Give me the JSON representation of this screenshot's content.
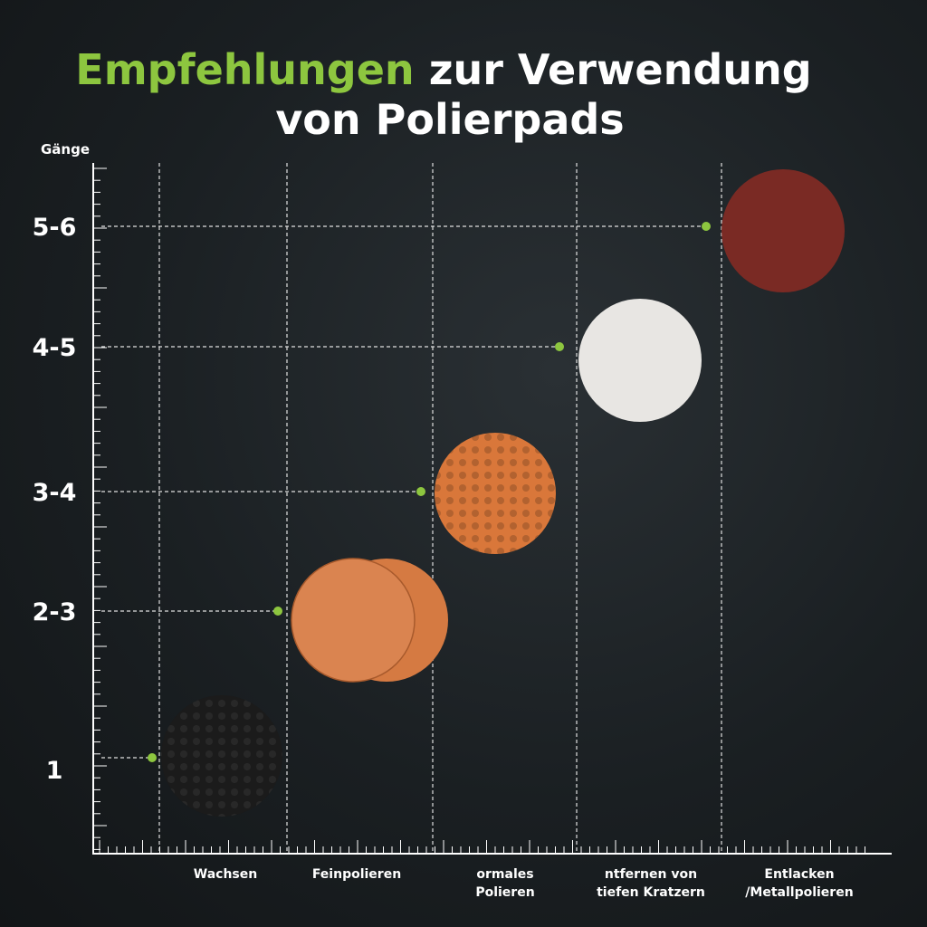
{
  "header": {
    "title_highlight": "Empfehlungen",
    "title_line1_rest": "zur Verwendung",
    "title_line2": "von Polierpads"
  },
  "y_axis": {
    "label": "Gänge",
    "levels": [
      "5-6",
      "4-5",
      "3-4",
      "2-3",
      "1"
    ]
  },
  "x_axis": {
    "categories": [
      [
        "Wachsen"
      ],
      [
        "Feinpolieren"
      ],
      [
        "ormales",
        "Polieren"
      ],
      [
        "ntfernen von",
        "tiefen Kratzern"
      ],
      [
        "Entlacken",
        "/Metallpolieren"
      ]
    ]
  }
}
